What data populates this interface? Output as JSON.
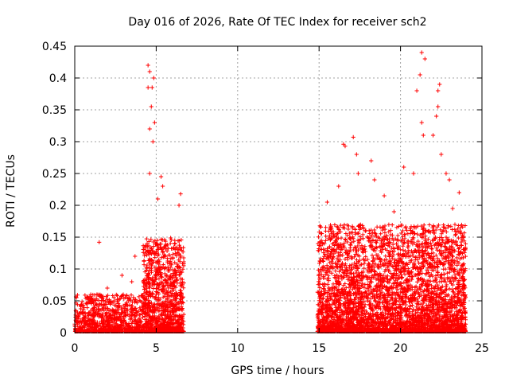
{
  "chart_data": {
    "type": "scatter",
    "title": "Day 016 of 2026, Rate Of TEC Index for receiver sch2",
    "xlabel": "GPS time / hours",
    "ylabel": "ROTI / TECUs",
    "xlim": [
      0,
      25
    ],
    "ylim": [
      0,
      0.45
    ],
    "grid": true,
    "marker": "+",
    "marker_color": "#ff0000",
    "x_ticks": [
      0,
      5,
      10,
      15,
      20,
      25
    ],
    "x_tick_labels": [
      "0",
      "5",
      "10",
      "15",
      "20",
      "25"
    ],
    "y_ticks": [
      0,
      0.05,
      0.1,
      0.15,
      0.2,
      0.25,
      0.3,
      0.35,
      0.4,
      0.45
    ],
    "y_tick_labels": [
      "0",
      "0.05",
      "0.1",
      "0.15",
      "0.2",
      "0.25",
      "0.3",
      "0.35",
      "0.4",
      "0.45"
    ],
    "series": [
      {
        "name": "ROTI",
        "data_segments": [
          {
            "x_range": [
              0.0,
              4.2
            ],
            "typical_range": [
              0.0,
              0.06
            ]
          },
          {
            "x_range": [
              4.2,
              6.7
            ],
            "typical_range": [
              0.0,
              0.15
            ]
          },
          {
            "x_range": [
              14.9,
              24.0
            ],
            "typical_range": [
              0.0,
              0.17
            ]
          }
        ],
        "notable_points": [
          {
            "x": 0.1,
            "y": 0.055
          },
          {
            "x": 1.5,
            "y": 0.142
          },
          {
            "x": 2.0,
            "y": 0.07
          },
          {
            "x": 2.9,
            "y": 0.09
          },
          {
            "x": 3.5,
            "y": 0.08
          },
          {
            "x": 3.7,
            "y": 0.12
          },
          {
            "x": 4.5,
            "y": 0.42
          },
          {
            "x": 4.6,
            "y": 0.41
          },
          {
            "x": 4.75,
            "y": 0.385
          },
          {
            "x": 4.85,
            "y": 0.4
          },
          {
            "x": 4.5,
            "y": 0.385
          },
          {
            "x": 4.7,
            "y": 0.355
          },
          {
            "x": 4.6,
            "y": 0.32
          },
          {
            "x": 4.9,
            "y": 0.33
          },
          {
            "x": 4.8,
            "y": 0.3
          },
          {
            "x": 4.6,
            "y": 0.25
          },
          {
            "x": 5.3,
            "y": 0.245
          },
          {
            "x": 5.4,
            "y": 0.23
          },
          {
            "x": 5.1,
            "y": 0.21
          },
          {
            "x": 6.5,
            "y": 0.218
          },
          {
            "x": 6.4,
            "y": 0.2
          },
          {
            "x": 15.5,
            "y": 0.205
          },
          {
            "x": 16.2,
            "y": 0.23
          },
          {
            "x": 16.5,
            "y": 0.296
          },
          {
            "x": 16.6,
            "y": 0.293
          },
          {
            "x": 17.1,
            "y": 0.307
          },
          {
            "x": 17.3,
            "y": 0.28
          },
          {
            "x": 17.4,
            "y": 0.25
          },
          {
            "x": 18.2,
            "y": 0.27
          },
          {
            "x": 18.4,
            "y": 0.24
          },
          {
            "x": 19.0,
            "y": 0.215
          },
          {
            "x": 19.6,
            "y": 0.19
          },
          {
            "x": 20.2,
            "y": 0.26
          },
          {
            "x": 20.8,
            "y": 0.25
          },
          {
            "x": 21.3,
            "y": 0.44
          },
          {
            "x": 21.5,
            "y": 0.43
          },
          {
            "x": 21.2,
            "y": 0.405
          },
          {
            "x": 21.0,
            "y": 0.38
          },
          {
            "x": 21.3,
            "y": 0.33
          },
          {
            "x": 21.4,
            "y": 0.31
          },
          {
            "x": 22.3,
            "y": 0.38
          },
          {
            "x": 22.4,
            "y": 0.39
          },
          {
            "x": 22.3,
            "y": 0.355
          },
          {
            "x": 22.2,
            "y": 0.34
          },
          {
            "x": 22.0,
            "y": 0.31
          },
          {
            "x": 22.5,
            "y": 0.28
          },
          {
            "x": 22.8,
            "y": 0.25
          },
          {
            "x": 23.0,
            "y": 0.24
          },
          {
            "x": 23.6,
            "y": 0.22
          },
          {
            "x": 23.2,
            "y": 0.195
          }
        ]
      }
    ]
  }
}
